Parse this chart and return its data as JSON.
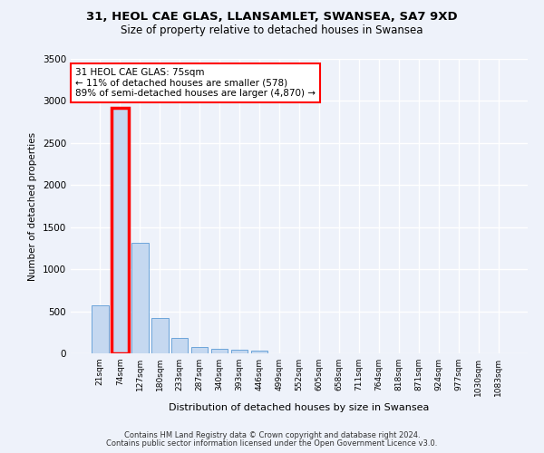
{
  "title_line1": "31, HEOL CAE GLAS, LLANSAMLET, SWANSEA, SA7 9XD",
  "title_line2": "Size of property relative to detached houses in Swansea",
  "xlabel": "Distribution of detached houses by size in Swansea",
  "ylabel": "Number of detached properties",
  "categories": [
    "21sqm",
    "74sqm",
    "127sqm",
    "180sqm",
    "233sqm",
    "287sqm",
    "340sqm",
    "393sqm",
    "446sqm",
    "499sqm",
    "552sqm",
    "605sqm",
    "658sqm",
    "711sqm",
    "764sqm",
    "818sqm",
    "871sqm",
    "924sqm",
    "977sqm",
    "1030sqm",
    "1083sqm"
  ],
  "values": [
    570,
    2920,
    1310,
    415,
    185,
    80,
    55,
    45,
    35,
    0,
    0,
    0,
    0,
    0,
    0,
    0,
    0,
    0,
    0,
    0,
    0
  ],
  "bar_color": "#c5d8f0",
  "bar_edge_color": "#5b9bd5",
  "highlight_bar_index": 1,
  "highlight_edge_color": "#ff0000",
  "annotation_text": "31 HEOL CAE GLAS: 75sqm\n← 11% of detached houses are smaller (578)\n89% of semi-detached houses are larger (4,870) →",
  "annotation_box_edge_color": "#ff0000",
  "annotation_box_face_color": "#ffffff",
  "background_color": "#eef2fa",
  "grid_color": "#ffffff",
  "ylim": [
    0,
    3500
  ],
  "yticks": [
    0,
    500,
    1000,
    1500,
    2000,
    2500,
    3000,
    3500
  ],
  "footer_line1": "Contains HM Land Registry data © Crown copyright and database right 2024.",
  "footer_line2": "Contains public sector information licensed under the Open Government Licence v3.0."
}
